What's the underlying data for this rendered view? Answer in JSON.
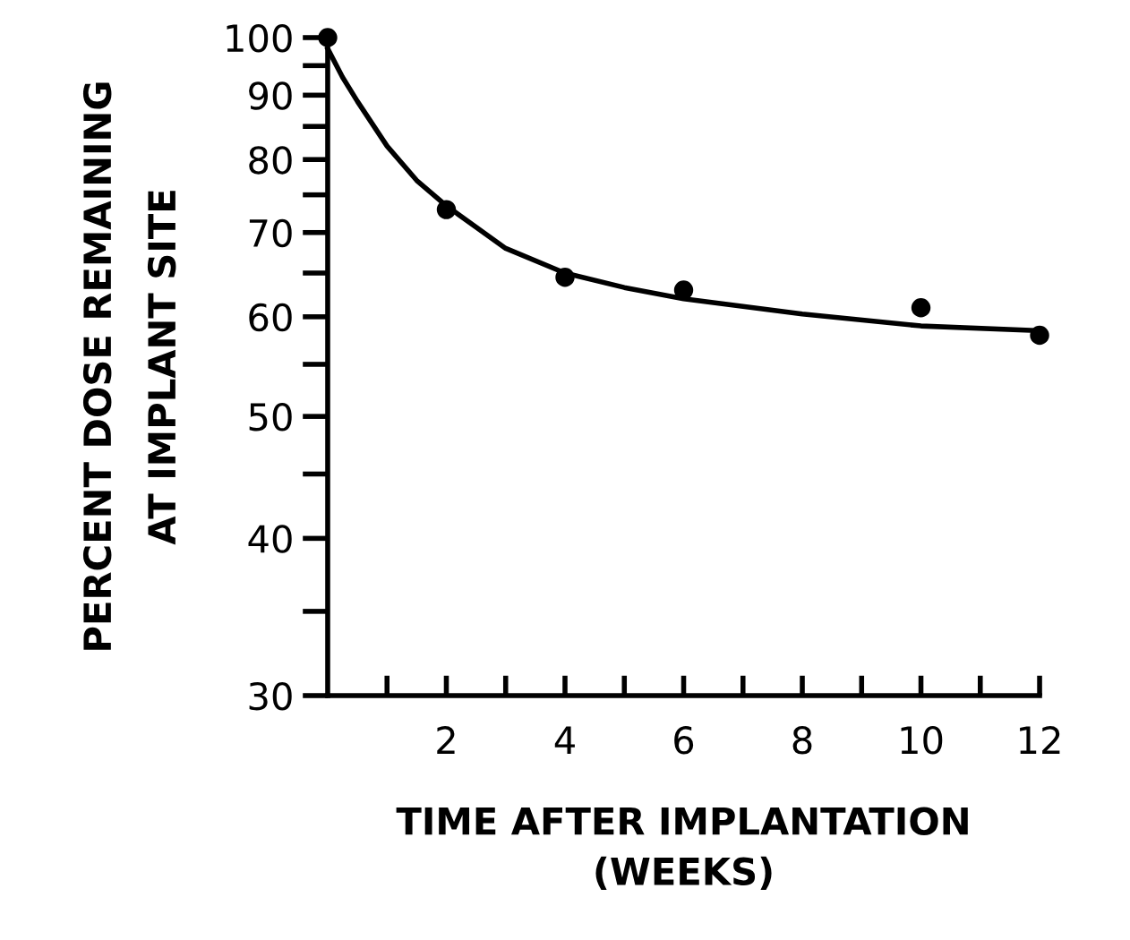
{
  "chart_data": {
    "type": "scatter",
    "xlabel": "TIME AFTER IMPLANTATION\n(WEEKS)",
    "ylabel": "PERCENT DOSE REMAINING\nAT IMPLANT SITE",
    "series": [
      {
        "color": "#000000",
        "x": [
          0,
          2,
          4,
          6,
          10,
          12
        ],
        "values": [
          100,
          73,
          64.5,
          63,
          61,
          58
        ],
        "marker": "circle"
      },
      {
        "type": "line",
        "color": "#000000",
        "x": [
          0,
          0.25,
          0.5,
          1,
          1.5,
          2,
          3,
          4,
          5,
          6,
          8,
          10,
          12
        ],
        "values": [
          98,
          93,
          89,
          82,
          77,
          73.5,
          68,
          65,
          63.3,
          62,
          60.3,
          59,
          58.5
        ],
        "marker": "none",
        "line_style": "solid"
      }
    ],
    "log": "y",
    "xlim": [
      0,
      12
    ],
    "ylim": [
      30,
      100
    ],
    "xticks": [
      {
        "value": 1,
        "label": null
      },
      2,
      {
        "value": 3,
        "label": null
      },
      4,
      {
        "value": 5,
        "label": null
      },
      6,
      {
        "value": 7,
        "label": null
      },
      8,
      {
        "value": 9,
        "label": null
      },
      10,
      {
        "value": 11,
        "label": null
      },
      12
    ],
    "yticks": [
      30,
      {
        "value": 35,
        "label": null
      },
      40,
      {
        "value": 45,
        "label": null
      },
      50,
      {
        "value": 55,
        "label": null
      },
      60,
      {
        "value": 65,
        "label": null
      },
      70,
      {
        "value": 75,
        "label": null
      },
      80,
      {
        "value": 85,
        "label": null
      },
      90,
      {
        "value": 95,
        "label": null
      },
      100
    ],
    "grid": false,
    "legend": false
  }
}
